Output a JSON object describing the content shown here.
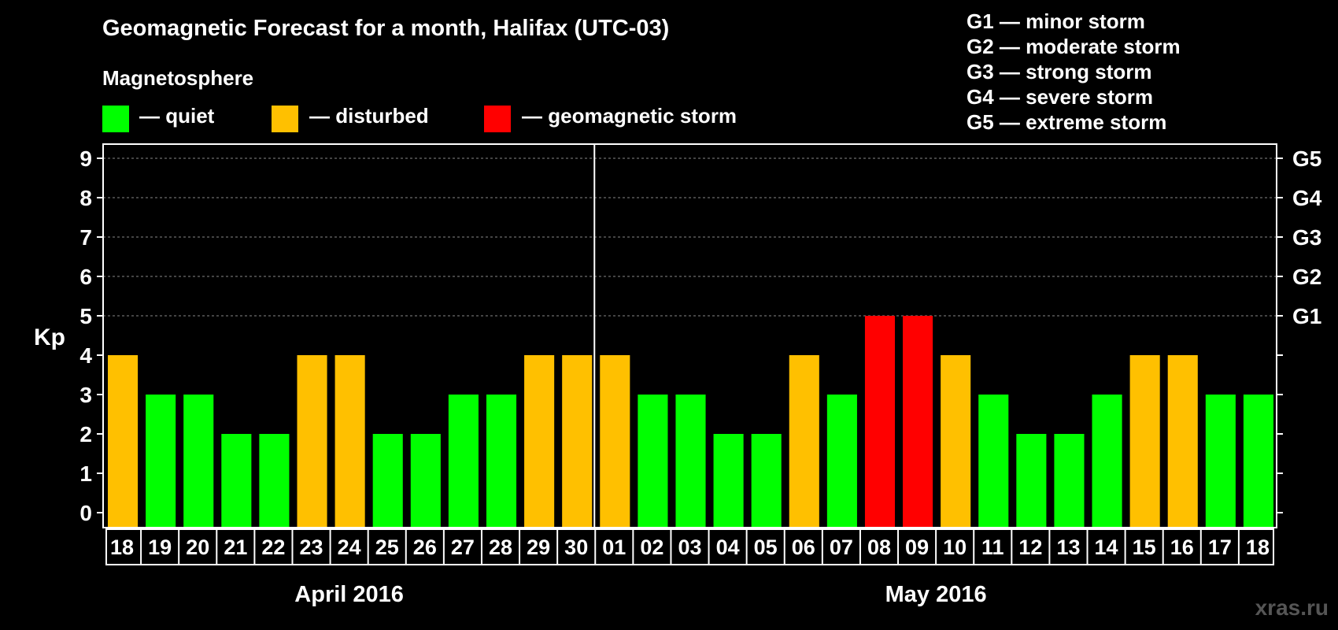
{
  "title": "Geomagnetic Forecast for a month, Halifax (UTC-03)",
  "subtitle": "Magnetosphere",
  "legend": [
    {
      "label": "— quiet",
      "color": "#00ff00"
    },
    {
      "label": "— disturbed",
      "color": "#ffc000"
    },
    {
      "label": "— geomagnetic storm",
      "color": "#ff0000"
    }
  ],
  "g_legend": [
    "G1 — minor storm",
    "G2 — moderate storm",
    "G3 — strong storm",
    "G4 — severe storm",
    "G5 — extreme storm"
  ],
  "watermark": "xras.ru",
  "chart_data": {
    "type": "bar",
    "title": "Geomagnetic Forecast for a month, Halifax (UTC-03)",
    "ylabel": "Kp",
    "ylim": [
      0,
      9
    ],
    "yticks": [
      "0",
      "1",
      "2",
      "3",
      "4",
      "5",
      "6",
      "7",
      "8",
      "9"
    ],
    "right_ticks": [
      {
        "kp": 5,
        "label": "G1"
      },
      {
        "kp": 6,
        "label": "G2"
      },
      {
        "kp": 7,
        "label": "G3"
      },
      {
        "kp": 8,
        "label": "G4"
      },
      {
        "kp": 9,
        "label": "G5"
      }
    ],
    "categories": [
      "18",
      "19",
      "20",
      "21",
      "22",
      "23",
      "24",
      "25",
      "26",
      "27",
      "28",
      "29",
      "30",
      "01",
      "02",
      "03",
      "04",
      "05",
      "06",
      "07",
      "08",
      "09",
      "10",
      "11",
      "12",
      "13",
      "14",
      "15",
      "16",
      "17",
      "18"
    ],
    "values": [
      4,
      3,
      3,
      2,
      2,
      4,
      4,
      2,
      2,
      3,
      3,
      4,
      4,
      4,
      3,
      3,
      2,
      2,
      4,
      3,
      5,
      5,
      4,
      3,
      2,
      2,
      3,
      4,
      4,
      3,
      3
    ],
    "months": [
      {
        "label": "April 2016",
        "start": 0,
        "count": 13
      },
      {
        "label": "May 2016",
        "start": 13,
        "count": 18
      }
    ],
    "colors": {
      "quiet": "#00ff00",
      "disturbed": "#ffc000",
      "storm": "#ff0000"
    }
  }
}
